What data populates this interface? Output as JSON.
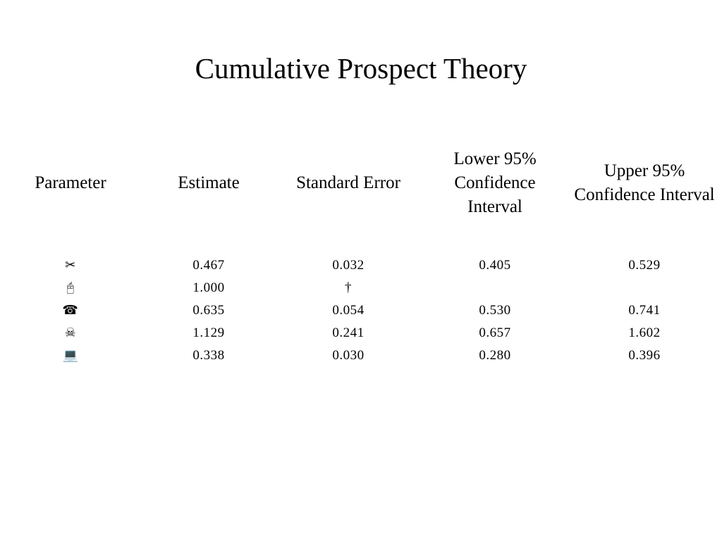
{
  "header": {
    "title": "Cumulative Prospect Theory"
  },
  "table": {
    "columns": [
      "Parameter",
      "Estimate",
      "Standard Error",
      "Lower 95% Confidence Interval",
      "Upper 95% Confidence Interval"
    ],
    "rows": [
      {
        "parameter": "✂",
        "estimate": "0.467",
        "standard_error": "0.032",
        "lower": "0.405",
        "upper": "0.529"
      },
      {
        "parameter": "🖰",
        "estimate": "1.000",
        "standard_error": "†"
      },
      {
        "parameter": "☎",
        "estimate": "0.635",
        "standard_error": "0.054",
        "lower": "0.530",
        "upper": "0.741"
      },
      {
        "parameter": "☠",
        "estimate": "1.129",
        "standard_error": "0.241",
        "lower": "0.657",
        "upper": "1.602"
      },
      {
        "parameter": "💻",
        "estimate": "0.338",
        "standard_error": "0.030",
        "lower": "0.280",
        "upper": "0.396"
      }
    ]
  }
}
